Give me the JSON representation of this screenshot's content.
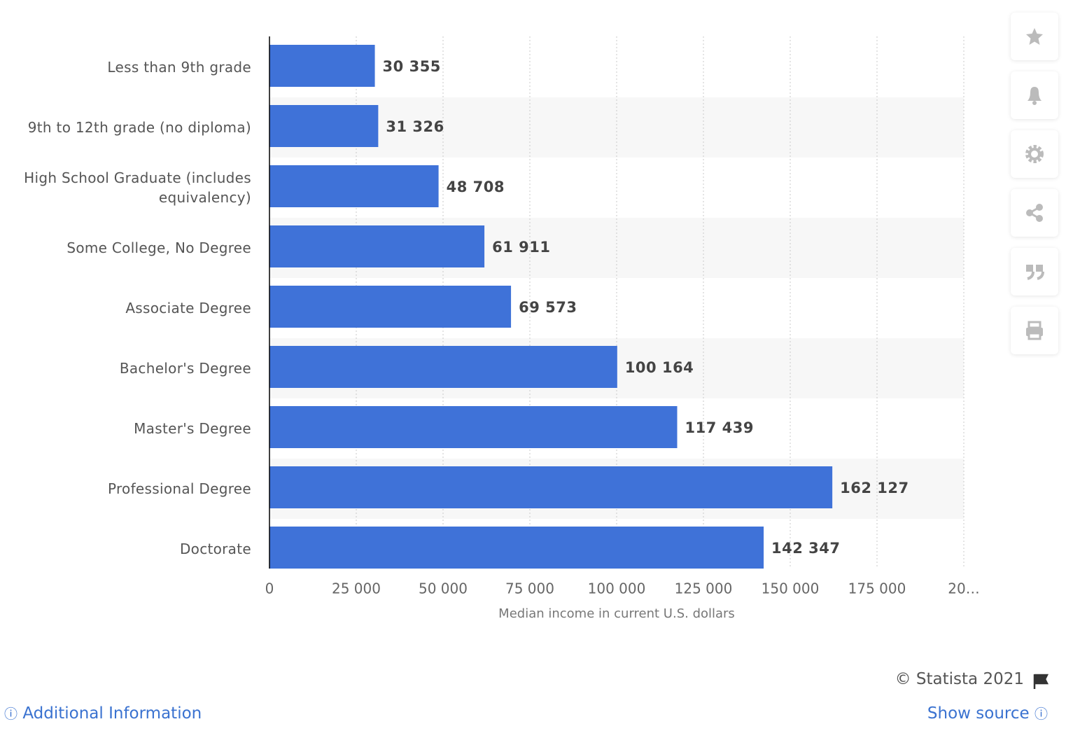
{
  "chart_data": {
    "type": "bar",
    "orientation": "horizontal",
    "categories": [
      "Less than 9th grade",
      "9th to 12th grade (no diploma)",
      "High School Graduate (includes equivalency)",
      "Some College, No Degree",
      "Associate Degree",
      "Bachelor's Degree",
      "Master's Degree",
      "Professional Degree",
      "Doctorate"
    ],
    "values": [
      30355,
      31326,
      48708,
      61911,
      69573,
      100164,
      117439,
      162127,
      142347
    ],
    "value_labels": [
      "30 355",
      "31 326",
      "48 708",
      "61 911",
      "69 573",
      "100 164",
      "117 439",
      "162 127",
      "142 347"
    ],
    "color": "#3f72d8",
    "x_label": "Median income in current U.S. dollars",
    "xlim": [
      0,
      200000
    ],
    "xticks": [
      0,
      {
        "value": 25000,
        "label": "25 000"
      },
      {
        "value": 50000,
        "label": "50 000"
      },
      {
        "value": 75000,
        "label": "75 000"
      },
      {
        "value": 100000,
        "label": "100 000"
      },
      {
        "value": 125000,
        "label": "125 000"
      },
      {
        "value": 150000,
        "label": "150 000"
      },
      {
        "value": 175000,
        "label": "175 000"
      },
      {
        "value": 200000,
        "label": "20…"
      }
    ],
    "grid": true
  },
  "footer": {
    "copyright": "© Statista 2021",
    "additional_info": "Additional Information",
    "show_source": "Show source"
  }
}
